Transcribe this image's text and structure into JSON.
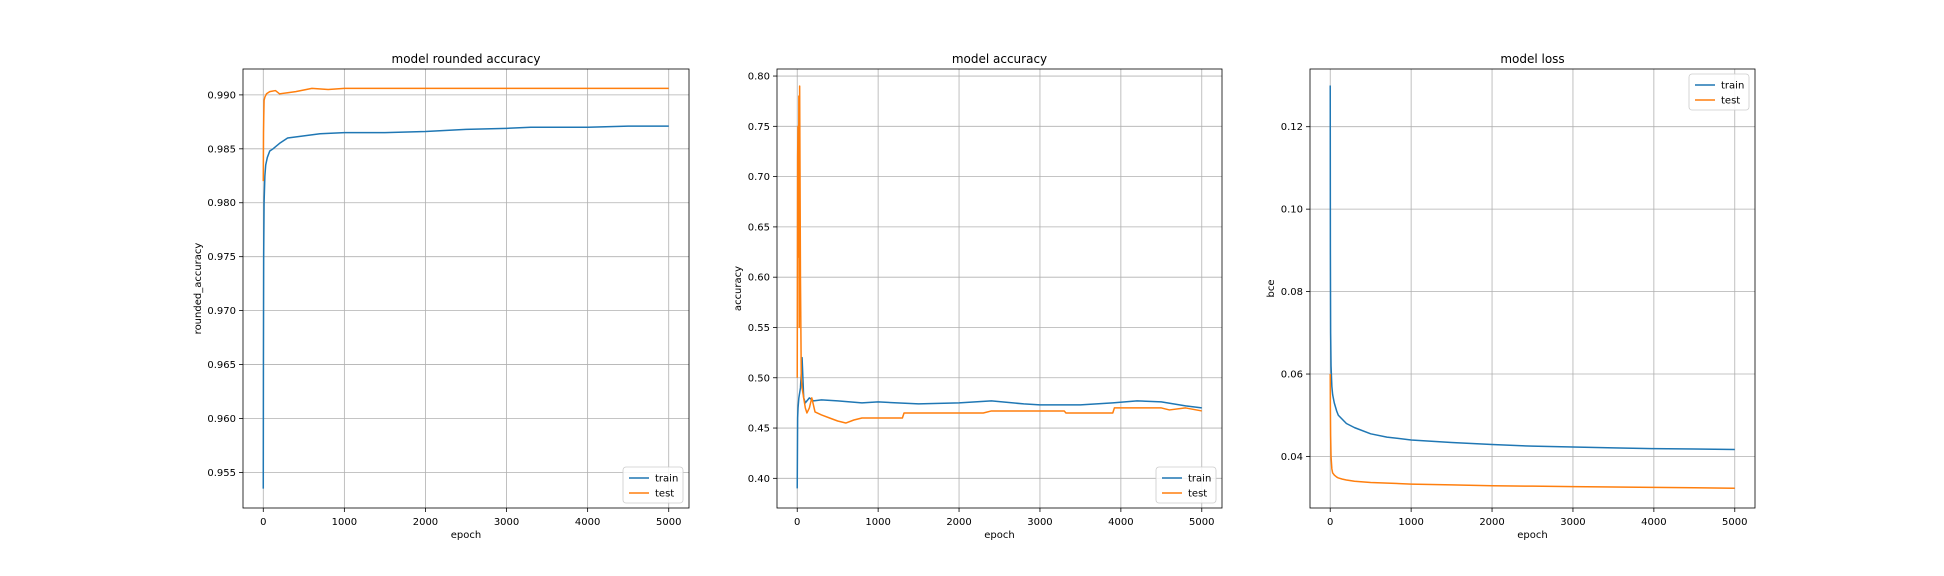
{
  "colors": {
    "train": "#1f77b4",
    "test": "#ff7f0e",
    "grid": "#b0b0b0"
  },
  "chart_data": [
    {
      "type": "line",
      "title": "model rounded accuracy",
      "xlabel": "epoch",
      "ylabel": "rounded_accuracy",
      "xlim": [
        -250,
        5250
      ],
      "ylim": [
        0.9517,
        0.9924
      ],
      "xticks": [
        0,
        1000,
        2000,
        3000,
        4000,
        5000
      ],
      "xtick_labels": [
        "0",
        "1000",
        "2000",
        "3000",
        "4000",
        "5000"
      ],
      "yticks": [
        0.955,
        0.96,
        0.965,
        0.97,
        0.975,
        0.98,
        0.985,
        0.99
      ],
      "ytick_labels": [
        "0.955",
        "0.960",
        "0.965",
        "0.970",
        "0.975",
        "0.980",
        "0.985",
        "0.990"
      ],
      "grid": true,
      "legend": "lower-right",
      "series": [
        {
          "name": "train",
          "color": "#1f77b4",
          "x": [
            0,
            2,
            5,
            10,
            20,
            30,
            50,
            80,
            120,
            200,
            300,
            500,
            700,
            1000,
            1500,
            2000,
            2500,
            3000,
            3300,
            3600,
            4000,
            4500,
            5000
          ],
          "y": [
            0.9535,
            0.965,
            0.975,
            0.98,
            0.9825,
            0.9835,
            0.9842,
            0.9848,
            0.985,
            0.9855,
            0.986,
            0.9862,
            0.9864,
            0.9865,
            0.9865,
            0.9866,
            0.9868,
            0.9869,
            0.987,
            0.987,
            0.987,
            0.9871,
            0.9871
          ]
        },
        {
          "name": "test",
          "color": "#ff7f0e",
          "x": [
            0,
            3,
            6,
            10,
            20,
            40,
            80,
            150,
            200,
            300,
            400,
            600,
            800,
            1000,
            1500,
            2000,
            2500,
            3000,
            3500,
            4000,
            4500,
            5000
          ],
          "y": [
            0.982,
            0.9865,
            0.988,
            0.9895,
            0.9898,
            0.9901,
            0.9903,
            0.9904,
            0.9901,
            0.9902,
            0.9903,
            0.9906,
            0.9905,
            0.9906,
            0.9906,
            0.9906,
            0.9906,
            0.9906,
            0.9906,
            0.9906,
            0.9906,
            0.9906
          ]
        }
      ]
    },
    {
      "type": "line",
      "title": "model accuracy",
      "xlabel": "epoch",
      "ylabel": "accuracy",
      "xlim": [
        -250,
        5250
      ],
      "ylim": [
        0.3705,
        0.807
      ],
      "xticks": [
        0,
        1000,
        2000,
        3000,
        4000,
        5000
      ],
      "xtick_labels": [
        "0",
        "1000",
        "2000",
        "3000",
        "4000",
        "5000"
      ],
      "yticks": [
        0.4,
        0.45,
        0.5,
        0.55,
        0.6,
        0.65,
        0.7,
        0.75,
        0.8
      ],
      "ytick_labels": [
        "0.40",
        "0.45",
        "0.50",
        "0.55",
        "0.60",
        "0.65",
        "0.70",
        "0.75",
        "0.80"
      ],
      "grid": true,
      "legend": "lower-right",
      "series": [
        {
          "name": "train",
          "color": "#1f77b4",
          "x": [
            0,
            5,
            10,
            20,
            40,
            60,
            80,
            100,
            150,
            200,
            300,
            500,
            800,
            1000,
            1500,
            2000,
            2400,
            2800,
            3000,
            3500,
            3900,
            4200,
            4500,
            4800,
            5000
          ],
          "y": [
            0.39,
            0.46,
            0.47,
            0.48,
            0.49,
            0.52,
            0.48,
            0.475,
            0.48,
            0.477,
            0.478,
            0.477,
            0.475,
            0.476,
            0.474,
            0.475,
            0.477,
            0.474,
            0.473,
            0.473,
            0.475,
            0.477,
            0.476,
            0.472,
            0.47
          ]
        },
        {
          "name": "test",
          "color": "#ff7f0e",
          "x": [
            0,
            5,
            10,
            15,
            20,
            25,
            30,
            40,
            50,
            60,
            80,
            100,
            120,
            150,
            180,
            220,
            300,
            400,
            500,
            600,
            700,
            800,
            1300,
            1320,
            2300,
            2400,
            3300,
            3320,
            3900,
            3920,
            4500,
            4600,
            4800,
            5000
          ],
          "y": [
            0.5,
            0.72,
            0.75,
            0.62,
            0.78,
            0.55,
            0.79,
            0.6,
            0.5,
            0.49,
            0.48,
            0.47,
            0.465,
            0.47,
            0.48,
            0.466,
            0.463,
            0.46,
            0.457,
            0.455,
            0.458,
            0.46,
            0.46,
            0.465,
            0.465,
            0.467,
            0.467,
            0.465,
            0.465,
            0.47,
            0.47,
            0.468,
            0.47,
            0.467
          ]
        }
      ]
    },
    {
      "type": "line",
      "title": "model loss",
      "xlabel": "epoch",
      "ylabel": "bce",
      "xlim": [
        -250,
        5250
      ],
      "ylim": [
        0.0275,
        0.134
      ],
      "xticks": [
        0,
        1000,
        2000,
        3000,
        4000,
        5000
      ],
      "xtick_labels": [
        "0",
        "1000",
        "2000",
        "3000",
        "4000",
        "5000"
      ],
      "yticks": [
        0.04,
        0.06,
        0.08,
        0.1,
        0.12
      ],
      "ytick_labels": [
        "0.04",
        "0.06",
        "0.08",
        "0.10",
        "0.12"
      ],
      "grid": true,
      "legend": "upper-right",
      "series": [
        {
          "name": "train",
          "color": "#1f77b4",
          "x": [
            0,
            2,
            5,
            10,
            20,
            30,
            50,
            80,
            100,
            150,
            200,
            300,
            500,
            700,
            1000,
            1500,
            2000,
            2500,
            3000,
            3500,
            4000,
            4500,
            5000
          ],
          "y": [
            0.13,
            0.09,
            0.07,
            0.062,
            0.057,
            0.055,
            0.053,
            0.051,
            0.05,
            0.049,
            0.048,
            0.047,
            0.0455,
            0.0447,
            0.044,
            0.0434,
            0.0429,
            0.0425,
            0.0423,
            0.0421,
            0.0419,
            0.0418,
            0.0417
          ]
        },
        {
          "name": "test",
          "color": "#ff7f0e",
          "x": [
            0,
            2,
            5,
            10,
            20,
            30,
            50,
            80,
            100,
            150,
            200,
            300,
            500,
            1000,
            1500,
            2000,
            2500,
            3000,
            3500,
            4000,
            4500,
            5000
          ],
          "y": [
            0.06,
            0.052,
            0.045,
            0.04,
            0.037,
            0.036,
            0.0355,
            0.035,
            0.0348,
            0.0345,
            0.0343,
            0.034,
            0.0337,
            0.0333,
            0.0331,
            0.0329,
            0.0328,
            0.0327,
            0.0326,
            0.0325,
            0.0324,
            0.0323
          ]
        }
      ]
    }
  ]
}
